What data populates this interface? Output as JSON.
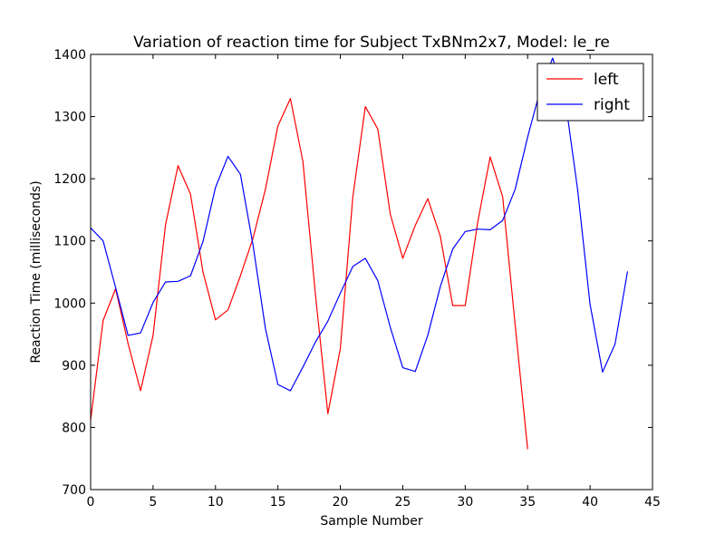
{
  "chart_data": {
    "type": "line",
    "title": "Variation of reaction time for Subject TxBNm2x7, Model: le_re",
    "xlabel": "Sample Number",
    "ylabel": "Reaction Time (milliseconds)",
    "xlim": [
      0,
      45
    ],
    "ylim": [
      700,
      1400
    ],
    "xticks": [
      "0",
      "5",
      "10",
      "15",
      "20",
      "25",
      "30",
      "35",
      "40",
      "45"
    ],
    "yticks": [
      "700",
      "800",
      "900",
      "1000",
      "1100",
      "1200",
      "1300",
      "1400"
    ],
    "grid": false,
    "legend_position": "top-right",
    "series": [
      {
        "name": "left",
        "color": "#ff0000",
        "x": [
          0,
          1,
          2,
          3,
          4,
          5,
          6,
          7,
          8,
          9,
          10,
          11,
          12,
          13,
          14,
          15,
          16,
          17,
          18,
          19,
          20,
          21,
          22,
          23,
          24,
          25,
          26,
          27,
          28,
          29,
          30,
          31,
          32,
          33,
          34,
          35
        ],
        "values": [
          812,
          972,
          1023,
          935,
          859,
          948,
          1126,
          1221,
          1175,
          1050,
          973,
          989,
          1044,
          1104,
          1183,
          1285,
          1329,
          1228,
          1015,
          822,
          927,
          1171,
          1316,
          1280,
          1143,
          1072,
          1125,
          1168,
          1108,
          996,
          996,
          1130,
          1235,
          1171,
          965,
          765
        ]
      },
      {
        "name": "right",
        "color": "#0000ff",
        "x": [
          0,
          1,
          2,
          3,
          4,
          5,
          6,
          7,
          8,
          9,
          10,
          11,
          12,
          13,
          14,
          15,
          16,
          17,
          18,
          19,
          20,
          21,
          22,
          23,
          24,
          25,
          26,
          27,
          28,
          29,
          30,
          31,
          32,
          33,
          34,
          35,
          36,
          37,
          38,
          39,
          40,
          41,
          42,
          43
        ],
        "values": [
          1121,
          1100,
          1025,
          948,
          952,
          1001,
          1034,
          1035,
          1044,
          1099,
          1186,
          1236,
          1207,
          1094,
          959,
          869,
          859,
          897,
          937,
          971,
          1016,
          1059,
          1072,
          1036,
          961,
          896,
          890,
          948,
          1026,
          1087,
          1115,
          1119,
          1118,
          1133,
          1183,
          1267,
          1342,
          1394,
          1329,
          1183,
          998,
          889,
          934,
          1051
        ]
      }
    ]
  }
}
